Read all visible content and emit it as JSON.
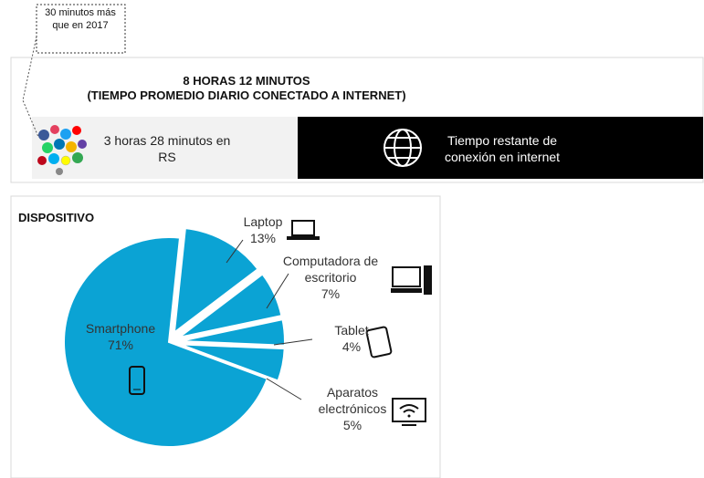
{
  "callout": "30 minutos más que en 2017",
  "header": {
    "title": "8 HORAS 12 MINUTOS",
    "subtitle": "(TIEMPO PROMEDIO DIARIO CONECTADO A INTERNET)"
  },
  "social": "3 horas 28 minutos en RS",
  "remaining": "Tiempo restante de conexión en internet",
  "chart_data": {
    "type": "pie",
    "title": "DISPOSITIVO",
    "categories": [
      "Laptop",
      "Computadora de escritorio",
      "Tablet",
      "Aparatos electrónicos",
      "Smartphone"
    ],
    "values": [
      13,
      7,
      4,
      5,
      71
    ],
    "value_labels": [
      "13%",
      "7%",
      "4%",
      "5%",
      "71%"
    ],
    "color": "#0ba3d4"
  }
}
